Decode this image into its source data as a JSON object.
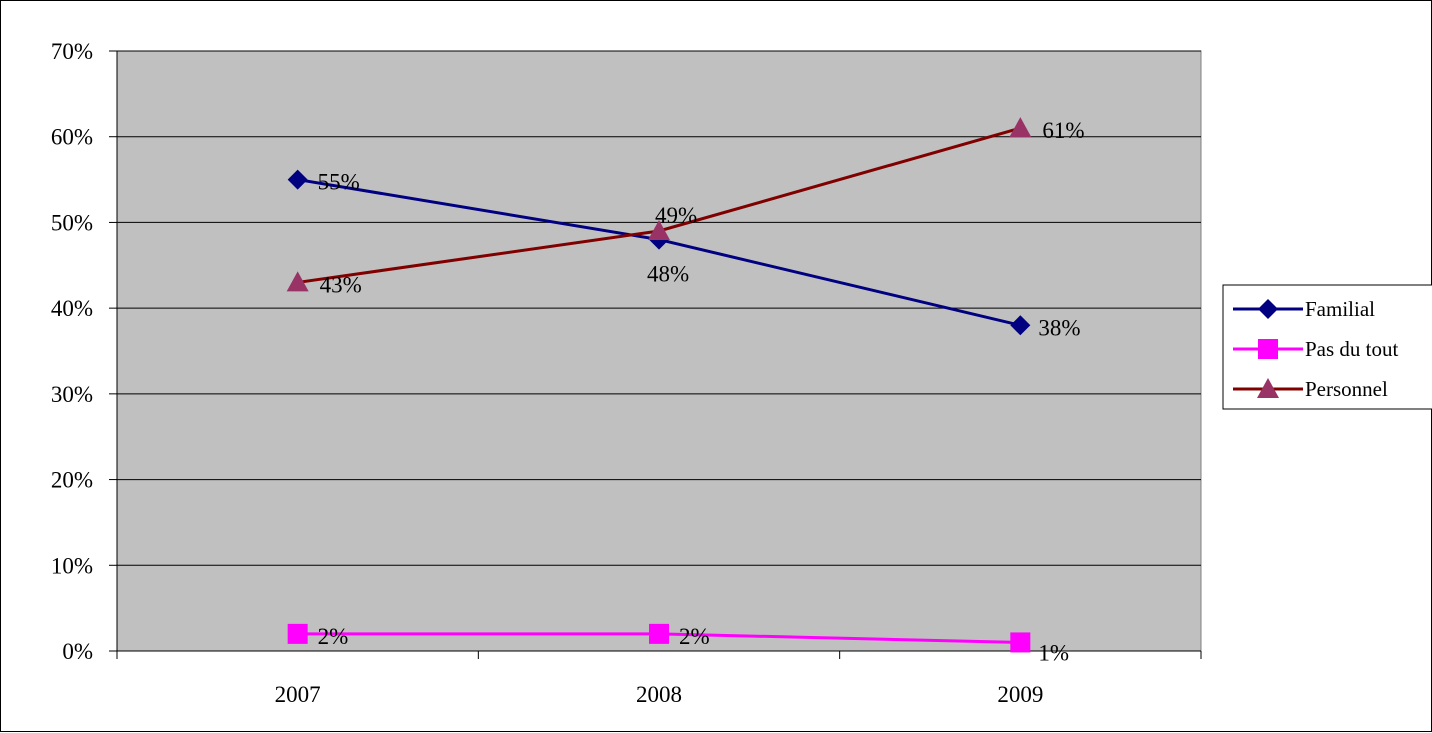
{
  "chart_data": {
    "type": "line",
    "categories": [
      "2007",
      "2008",
      "2009"
    ],
    "ylim": [
      0,
      0.7
    ],
    "yticks": [
      "0%",
      "10%",
      "20%",
      "30%",
      "40%",
      "50%",
      "60%",
      "70%"
    ],
    "grid": true,
    "legend_position": "right",
    "plot_background": "#c0c0c0",
    "series": [
      {
        "name": "Familial",
        "values": [
          0.55,
          0.48,
          0.38
        ],
        "labels": [
          "55%",
          "48%",
          "38%"
        ],
        "color": "#000080",
        "marker": "diamond"
      },
      {
        "name": "Pas du tout",
        "values": [
          0.02,
          0.02,
          0.01
        ],
        "labels": [
          "2%",
          "2%",
          "1%"
        ],
        "color": "#ff00ff",
        "marker": "square"
      },
      {
        "name": "Personnel",
        "values": [
          0.43,
          0.49,
          0.61
        ],
        "labels": [
          "43%",
          "49%",
          "61%"
        ],
        "color": "#800000",
        "marker_color": "#993366",
        "marker": "triangle"
      }
    ]
  }
}
